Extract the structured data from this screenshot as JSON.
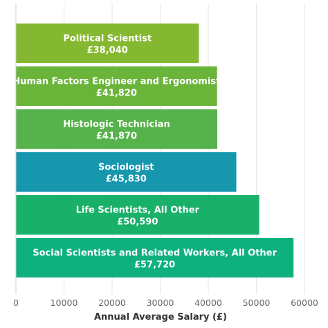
{
  "chart_data": {
    "type": "bar",
    "orientation": "horizontal",
    "xlabel": "Annual Average Salary (£)",
    "ylabel": "",
    "xlim": [
      0,
      60000
    ],
    "xticks": [
      0,
      10000,
      20000,
      30000,
      40000,
      50000,
      60000
    ],
    "grid": true,
    "legend": "none",
    "bars": [
      {
        "category": "Political Scientist",
        "value": 38040,
        "value_label": "£38,040",
        "color": "#84b830"
      },
      {
        "category": "Human Factors Engineer and Ergonomist",
        "value": 41820,
        "value_label": "£41,820",
        "color": "#6ab43a"
      },
      {
        "category": "Histologic Technician",
        "value": 41870,
        "value_label": "£41,870",
        "color": "#56b24a"
      },
      {
        "category": "Sociologist",
        "value": 45830,
        "value_label": "£45,830",
        "color": "#1697ae"
      },
      {
        "category": "Life Scientists, All Other",
        "value": 50590,
        "value_label": "£50,590",
        "color": "#19b06a"
      },
      {
        "category": "Social Scientists and Related Workers, All Other",
        "value": 57720,
        "value_label": "£57,720",
        "color": "#0eb07e"
      }
    ]
  }
}
